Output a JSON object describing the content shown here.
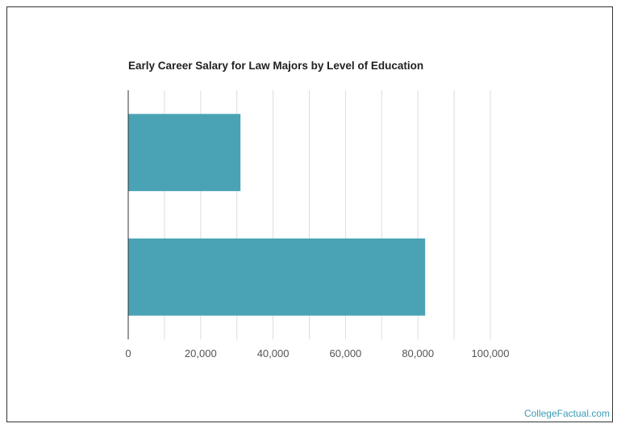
{
  "chart_data": {
    "type": "bar",
    "orientation": "horizontal",
    "title": "Early Career Salary for Law Majors by Level of Education",
    "categories": [
      "",
      ""
    ],
    "values": [
      31000,
      82000
    ],
    "xlim": [
      0,
      100000
    ],
    "xticks": [
      0,
      20000,
      40000,
      60000,
      80000,
      100000
    ],
    "xtick_labels": [
      "0",
      "20,000",
      "40,000",
      "60,000",
      "80,000",
      "100,000"
    ],
    "xlabel": "",
    "ylabel": "",
    "grid": true,
    "legend": "none",
    "bar_color": "#4aa3b5",
    "grid_color": "#dddddd",
    "axis_color": "#333333"
  },
  "footer": {
    "watermark": "CollegeFactual.com",
    "accent_color": "#3a9bb5"
  }
}
